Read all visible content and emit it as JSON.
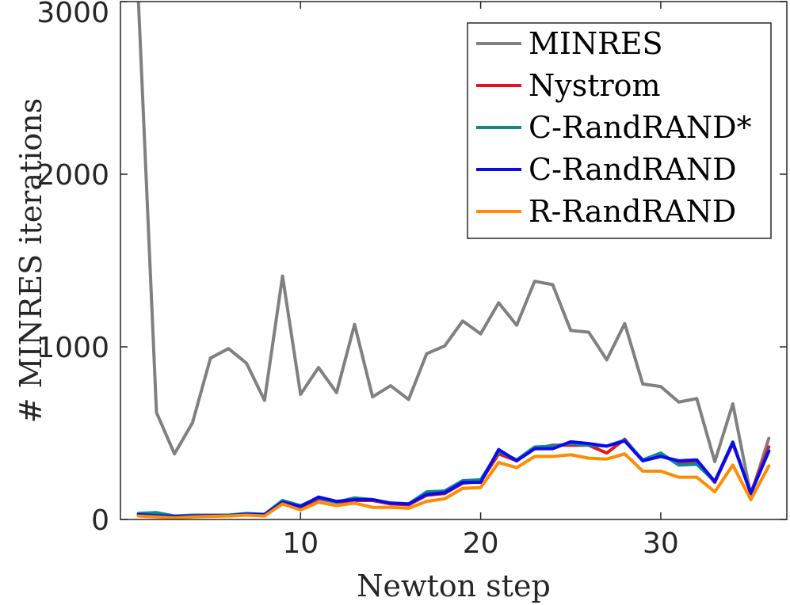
{
  "chart_data": {
    "type": "line",
    "xlabel": "Newton step",
    "ylabel": "# MINRES iterations",
    "xlim": [
      0,
      37
    ],
    "ylim": [
      0,
      3000
    ],
    "xticks": [
      10,
      20,
      30
    ],
    "xtick_labels": [
      "10",
      "20",
      "30"
    ],
    "yticks": [
      0,
      1000,
      2000,
      3000
    ],
    "ytick_labels": [
      "0",
      "1000",
      "2000",
      "3000"
    ],
    "grid": false,
    "legend_position": "top-right",
    "x": [
      1,
      2,
      3,
      4,
      5,
      6,
      7,
      8,
      9,
      10,
      11,
      12,
      13,
      14,
      15,
      16,
      17,
      18,
      19,
      20,
      21,
      22,
      23,
      24,
      25,
      26,
      27,
      28,
      29,
      30,
      31,
      32,
      33,
      34,
      35,
      36
    ],
    "series": [
      {
        "name": "MINRES",
        "color": "#808080",
        "values": [
          3000,
          620,
          380,
          560,
          935,
          990,
          905,
          690,
          1410,
          725,
          880,
          735,
          1130,
          710,
          775,
          695,
          960,
          1005,
          1150,
          1075,
          1255,
          1125,
          1380,
          1360,
          1095,
          1085,
          925,
          1135,
          785,
          770,
          680,
          700,
          335,
          670,
          140,
          470
        ]
      },
      {
        "name": "Nystrom",
        "color": "#e3141b",
        "values": [
          30,
          30,
          20,
          20,
          25,
          25,
          30,
          25,
          100,
          70,
          120,
          100,
          110,
          110,
          90,
          85,
          140,
          150,
          210,
          220,
          380,
          340,
          410,
          430,
          430,
          430,
          385,
          465,
          340,
          370,
          330,
          335,
          215,
          440,
          155,
          420
        ]
      },
      {
        "name": "C-RandRAND*",
        "color": "#0e8a8a",
        "values": [
          35,
          40,
          20,
          25,
          25,
          25,
          35,
          30,
          110,
          80,
          125,
          100,
          125,
          115,
          95,
          90,
          160,
          165,
          225,
          230,
          395,
          345,
          420,
          425,
          440,
          430,
          425,
          460,
          345,
          385,
          315,
          320,
          220,
          450,
          150,
          400
        ]
      },
      {
        "name": "C-RandRAND",
        "color": "#0a0af0",
        "values": [
          28,
          22,
          18,
          20,
          22,
          22,
          30,
          28,
          100,
          75,
          130,
          105,
          115,
          115,
          95,
          90,
          145,
          155,
          215,
          215,
          405,
          340,
          410,
          410,
          450,
          440,
          425,
          455,
          340,
          365,
          340,
          345,
          220,
          445,
          150,
          395
        ]
      },
      {
        "name": "R-RandRAND",
        "color": "#ff8c00",
        "values": [
          20,
          15,
          10,
          15,
          18,
          20,
          25,
          20,
          90,
          55,
          100,
          80,
          95,
          70,
          70,
          65,
          105,
          120,
          180,
          185,
          330,
          300,
          365,
          365,
          375,
          355,
          350,
          380,
          280,
          280,
          245,
          245,
          160,
          315,
          115,
          310
        ]
      }
    ]
  }
}
